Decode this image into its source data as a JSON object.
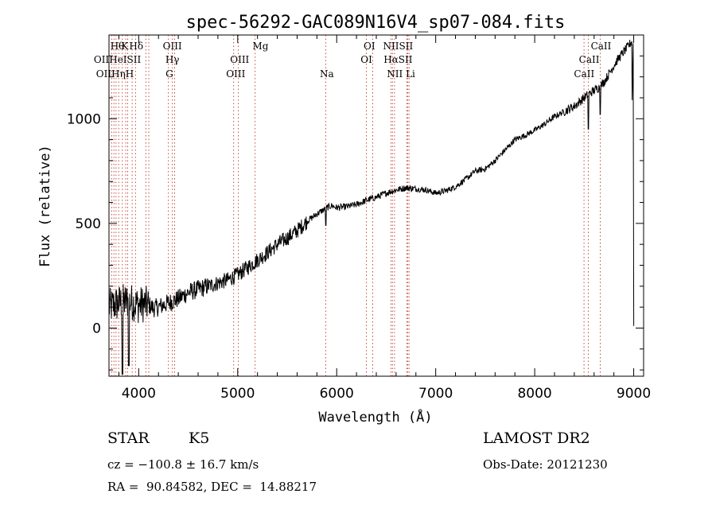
{
  "chart_data": {
    "type": "line",
    "title": "spec-56292-GAC089N16V4_sp07-084.fits",
    "xlabel": "Wavelength (Å)",
    "ylabel": "Flux (relative)",
    "xlim": [
      3700,
      9100
    ],
    "ylim": [
      -230,
      1400
    ],
    "xticks": [
      4000,
      5000,
      6000,
      7000,
      8000,
      9000
    ],
    "xtick_labels": [
      "4000",
      "5000",
      "6000",
      "7000",
      "8000",
      "9000"
    ],
    "yticks": [
      0,
      500,
      1000
    ],
    "ytick_labels": [
      "0",
      "500",
      "1000"
    ],
    "grid": false,
    "series": [
      {
        "color": "#000000",
        "x": [
          3700,
          3750,
          3800,
          3850,
          3900,
          3950,
          4000,
          4050,
          4100,
          4150,
          4200,
          4300,
          4400,
          4500,
          4600,
          4700,
          4800,
          4900,
          5000,
          5100,
          5200,
          5300,
          5400,
          5500,
          5600,
          5700,
          5800,
          5900,
          5950,
          6000,
          6100,
          6200,
          6300,
          6400,
          6500,
          6600,
          6700,
          6800,
          6900,
          7000,
          7100,
          7200,
          7300,
          7400,
          7500,
          7600,
          7700,
          7800,
          7900,
          8000,
          8100,
          8200,
          8300,
          8400,
          8450,
          8500,
          8550,
          8600,
          8650,
          8700,
          8750,
          8800,
          8850,
          8900,
          8950,
          8980,
          9000
        ],
        "y": [
          100,
          110,
          120,
          125,
          130,
          120,
          110,
          115,
          110,
          95,
          100,
          120,
          140,
          170,
          185,
          200,
          215,
          230,
          255,
          290,
          325,
          360,
          400,
          430,
          465,
          510,
          545,
          575,
          585,
          575,
          580,
          590,
          610,
          625,
          645,
          660,
          670,
          665,
          660,
          645,
          655,
          675,
          710,
          750,
          760,
          800,
          850,
          900,
          920,
          945,
          975,
          1010,
          1035,
          1060,
          1080,
          1100,
          1120,
          1135,
          1150,
          1175,
          1215,
          1255,
          1290,
          1320,
          1350,
          1370,
          10
        ]
      }
    ]
  },
  "line_labels": {
    "row1": [
      {
        "text": "Hθ",
        "w": 3785
      },
      {
        "text": "K",
        "w": 3860
      },
      {
        "text": "Hδ",
        "w": 3975
      },
      {
        "text": "OIII",
        "w": 4340
      },
      {
        "text": "Mg",
        "w": 5230
      },
      {
        "text": "OI",
        "w": 6330
      },
      {
        "text": "NIISII",
        "w": 6620
      }
    ],
    "row2": [
      {
        "text": "OIIHeISII",
        "w": 3785
      },
      {
        "text": "Hγ",
        "w": 4340
      },
      {
        "text": "OIII",
        "w": 5020
      },
      {
        "text": "OI",
        "w": 6300
      },
      {
        "text": "HαSII",
        "w": 6620
      },
      {
        "text": "CaII",
        "w": 8550
      }
    ],
    "row3": [
      {
        "text": "OIIHηH",
        "w": 3760
      },
      {
        "text": "G",
        "w": 4310
      },
      {
        "text": "OIII",
        "w": 4980
      },
      {
        "text": "Na",
        "w": 5900
      },
      {
        "text": "NII Li",
        "w": 6650
      },
      {
        "text": "CaII",
        "w": 8500
      }
    ],
    "top_right": {
      "text": "CaII",
      "w": 8670
    }
  },
  "info": {
    "obj_class": "STAR",
    "subclass": "K5",
    "survey": "LAMOST DR2",
    "cz": "cz = −100.8 ± 16.7 km/s",
    "obs_date": "Obs-Date: 20121230",
    "coords": "RA =  90.84582, DEC =  14.88217"
  }
}
